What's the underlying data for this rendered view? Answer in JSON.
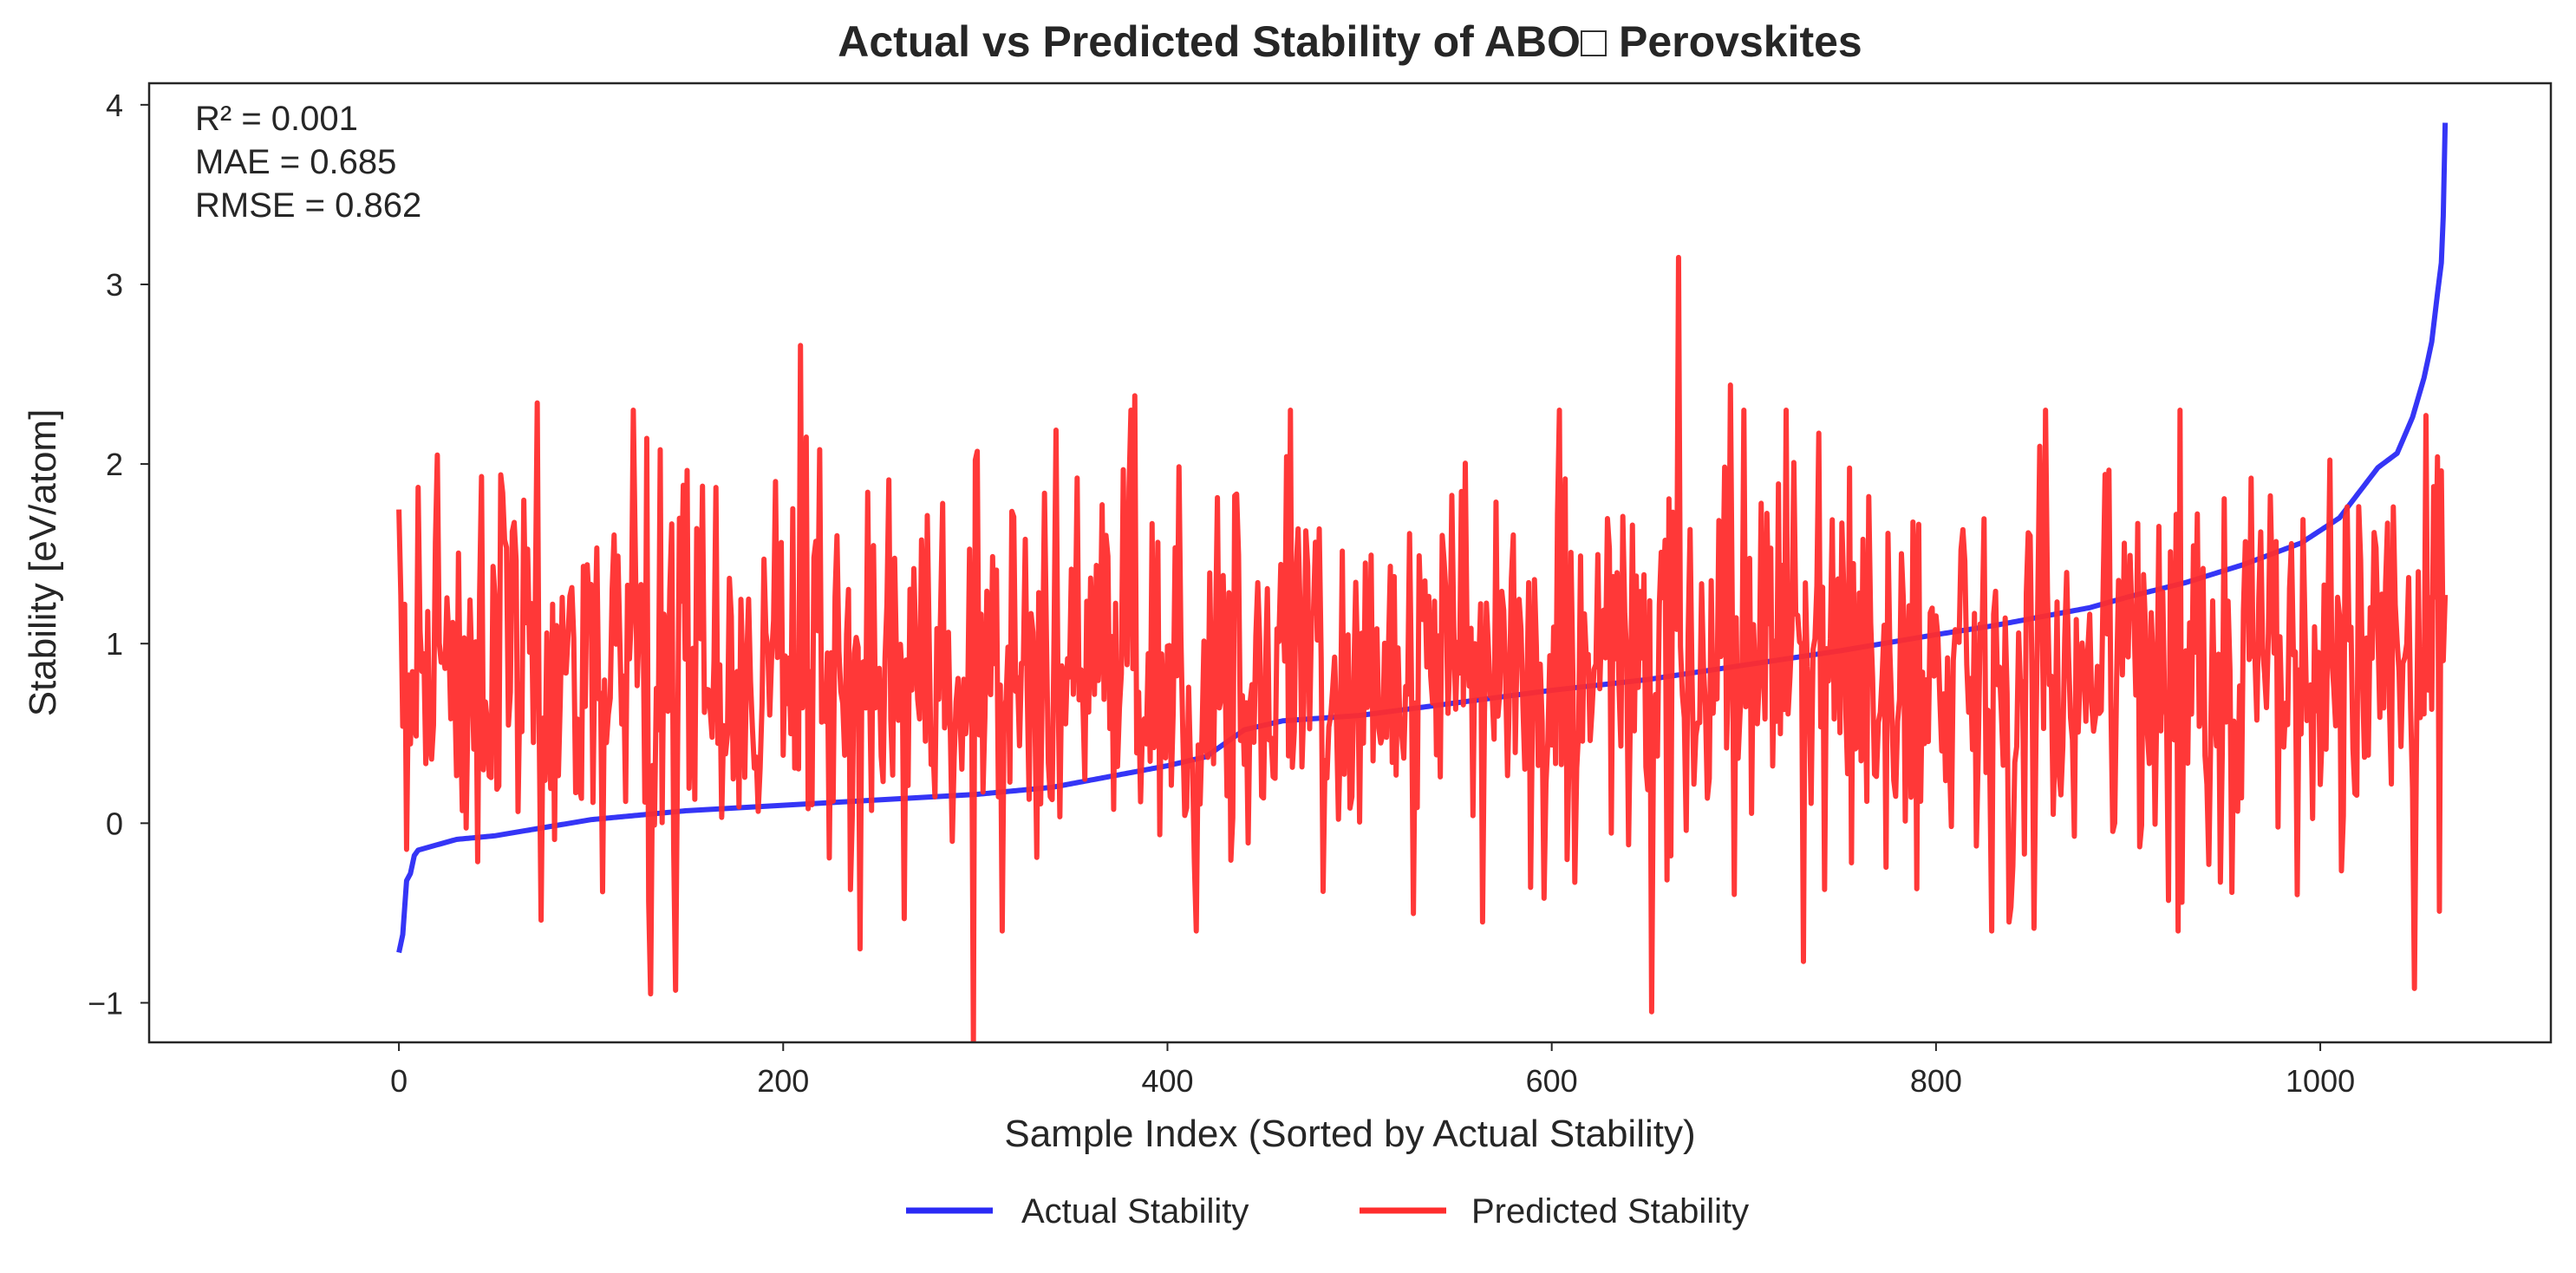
{
  "chart_data": {
    "type": "line",
    "title": "Actual vs Predicted Stability of ABO□ Perovskites",
    "xlabel": "Sample Index (Sorted by Actual Stability)",
    "ylabel": "Stability [eV/atom]",
    "xlim": [
      -130,
      1120
    ],
    "ylim": [
      -1.22,
      4.12
    ],
    "xticks": [
      0,
      200,
      400,
      600,
      800,
      1000
    ],
    "yticks": [
      -1,
      0,
      1,
      2,
      3,
      4
    ],
    "ytick_labels": [
      "−1",
      "0",
      "1",
      "2",
      "3",
      "4"
    ],
    "grid": false,
    "legend_position": "bottom-center, outside",
    "annotation": {
      "r2": "R² = 0.001",
      "mae": "MAE = 0.685",
      "rmse": "RMSE = 0.862"
    },
    "n_samples": 1066,
    "series": [
      {
        "name": "Actual Stability",
        "color": "#2a2af5",
        "monotone_keypoints": [
          [
            0,
            -0.72
          ],
          [
            2,
            -0.62
          ],
          [
            4,
            -0.32
          ],
          [
            6,
            -0.28
          ],
          [
            8,
            -0.18
          ],
          [
            10,
            -0.15
          ],
          [
            20,
            -0.12
          ],
          [
            30,
            -0.09
          ],
          [
            50,
            -0.07
          ],
          [
            100,
            0.02
          ],
          [
            150,
            0.07
          ],
          [
            200,
            0.1
          ],
          [
            250,
            0.13
          ],
          [
            300,
            0.16
          ],
          [
            340,
            0.2
          ],
          [
            380,
            0.28
          ],
          [
            400,
            0.32
          ],
          [
            420,
            0.37
          ],
          [
            440,
            0.52
          ],
          [
            460,
            0.57
          ],
          [
            500,
            0.6
          ],
          [
            550,
            0.67
          ],
          [
            600,
            0.74
          ],
          [
            650,
            0.8
          ],
          [
            700,
            0.88
          ],
          [
            750,
            0.96
          ],
          [
            800,
            1.05
          ],
          [
            830,
            1.1
          ],
          [
            850,
            1.14
          ],
          [
            880,
            1.2
          ],
          [
            900,
            1.26
          ],
          [
            930,
            1.34
          ],
          [
            960,
            1.44
          ],
          [
            990,
            1.56
          ],
          [
            1010,
            1.7
          ],
          [
            1020,
            1.84
          ],
          [
            1030,
            1.98
          ],
          [
            1040,
            2.06
          ],
          [
            1048,
            2.26
          ],
          [
            1054,
            2.48
          ],
          [
            1058,
            2.68
          ],
          [
            1061,
            2.95
          ],
          [
            1063,
            3.12
          ],
          [
            1064,
            3.38
          ],
          [
            1065,
            3.9
          ]
        ]
      },
      {
        "name": "Predicted Stability",
        "color": "#ff2d2d",
        "mean": 0.85,
        "std": 0.55,
        "notable_values": [
          {
            "x": 1,
            "y": 1.27
          },
          {
            "x": 10,
            "y": 1.87
          },
          {
            "x": 20,
            "y": 2.05
          },
          {
            "x": 72,
            "y": 2.34
          },
          {
            "x": 74,
            "y": -0.54
          },
          {
            "x": 131,
            "y": -0.95
          },
          {
            "x": 144,
            "y": -0.93
          },
          {
            "x": 209,
            "y": 2.66
          },
          {
            "x": 219,
            "y": 2.08
          },
          {
            "x": 240,
            "y": -0.7
          },
          {
            "x": 299,
            "y": -1.22
          },
          {
            "x": 383,
            "y": 2.38
          },
          {
            "x": 564,
            "y": -0.55
          },
          {
            "x": 652,
            "y": -1.05
          },
          {
            "x": 666,
            "y": 3.15
          },
          {
            "x": 693,
            "y": 2.44
          },
          {
            "x": 731,
            "y": -0.77
          },
          {
            "x": 838,
            "y": -0.55
          },
          {
            "x": 921,
            "y": -0.43
          },
          {
            "x": 1049,
            "y": -0.92
          },
          {
            "x": 1055,
            "y": 2.27
          },
          {
            "x": 1061,
            "y": 2.04
          },
          {
            "x": 1066,
            "y": 1.18
          }
        ]
      }
    ]
  }
}
